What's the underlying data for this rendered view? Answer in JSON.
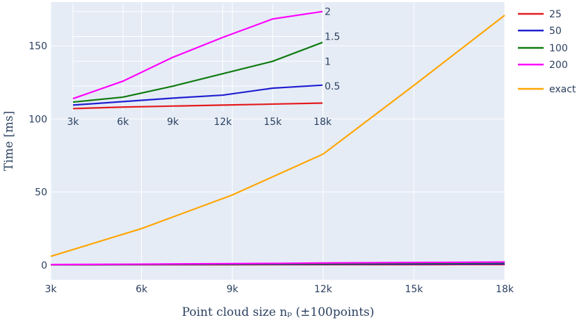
{
  "chart_data": [
    {
      "type": "line",
      "xlabel": "Point cloud size nₚ (±100points)",
      "ylabel": "Time [ms]",
      "xlim": [
        3000,
        18000
      ],
      "ylim": [
        -10,
        180
      ],
      "x_ticks": [
        3000,
        6000,
        9000,
        12000,
        15000,
        18000
      ],
      "x_tick_labels": [
        "3k",
        "6k",
        "9k",
        "12k",
        "15k",
        "18k"
      ],
      "y_ticks": [
        0,
        50,
        100,
        150
      ],
      "y_tick_labels": [
        "0",
        "50",
        "100",
        "150"
      ],
      "grid": true,
      "legend_position": "right",
      "series": [
        {
          "name": "25",
          "color": "#e41a1c",
          "x": [
            3000,
            5450,
            7150,
            8850,
            10450,
            12000,
            13650,
            15000,
            16500,
            18000
          ],
          "y": [
            0.2,
            0.25,
            0.25,
            0.27,
            0.3,
            0.3,
            0.32,
            0.33,
            0.35,
            0.37
          ]
        },
        {
          "name": "50",
          "color": "#1f1fd1",
          "x": [
            3000,
            5450,
            7150,
            8850,
            10450,
            12000,
            13650,
            15000,
            16500,
            18000
          ],
          "y": [
            0.25,
            0.35,
            0.45,
            0.5,
            0.55,
            0.6,
            0.7,
            0.75,
            0.8,
            0.85
          ]
        },
        {
          "name": "100",
          "color": "#0f7a0f",
          "x": [
            3000,
            5450,
            7150,
            8850,
            10450,
            12000,
            13650,
            15000,
            16500,
            18000
          ],
          "y": [
            0.3,
            0.45,
            0.55,
            0.7,
            0.85,
            1.0,
            1.15,
            1.3,
            1.45,
            1.6
          ]
        },
        {
          "name": "200",
          "color": "#ff00ff",
          "x": [
            3000,
            5450,
            7150,
            8850,
            10450,
            12000,
            13650,
            15000,
            16500,
            18000
          ],
          "y": [
            0.4,
            0.6,
            0.8,
            1.0,
            1.2,
            1.45,
            1.65,
            1.8,
            1.95,
            2.1
          ]
        },
        {
          "name": "exact",
          "color": "#ffa500",
          "x": [
            3000,
            6000,
            9000,
            12000,
            15000,
            18000
          ],
          "y": [
            6,
            25,
            48,
            76,
            123,
            171
          ]
        }
      ]
    },
    {
      "type": "line",
      "xlim": [
        3000,
        18000
      ],
      "ylim": [
        0,
        2.05
      ],
      "x_ticks": [
        3000,
        6000,
        9000,
        12000,
        15000,
        18000
      ],
      "x_tick_labels": [
        "3k",
        "6k",
        "9k",
        "12k",
        "15k",
        "18k"
      ],
      "y_ticks": [
        0.5,
        1,
        1.5,
        2
      ],
      "y_tick_labels": [
        "0.5",
        "1",
        "1.5",
        "2"
      ],
      "grid": true,
      "series": [
        {
          "color": "#e41a1c",
          "x": [
            3000,
            6000,
            9000,
            12000,
            15000,
            18000
          ],
          "y": [
            0.05,
            0.08,
            0.1,
            0.12,
            0.14,
            0.16
          ]
        },
        {
          "color": "#1f1fd1",
          "x": [
            3000,
            6000,
            9000,
            12000,
            15000,
            18000
          ],
          "y": [
            0.12,
            0.19,
            0.26,
            0.32,
            0.46,
            0.52
          ]
        },
        {
          "color": "#0f7a0f",
          "x": [
            3000,
            6000,
            9000,
            12000,
            15000,
            18000
          ],
          "y": [
            0.18,
            0.28,
            0.5,
            0.75,
            1.0,
            1.38
          ]
        },
        {
          "color": "#ff00ff",
          "x": [
            3000,
            6000,
            9000,
            12000,
            15000,
            18000
          ],
          "y": [
            0.25,
            0.6,
            1.08,
            1.48,
            1.85,
            2.0
          ]
        }
      ]
    }
  ]
}
